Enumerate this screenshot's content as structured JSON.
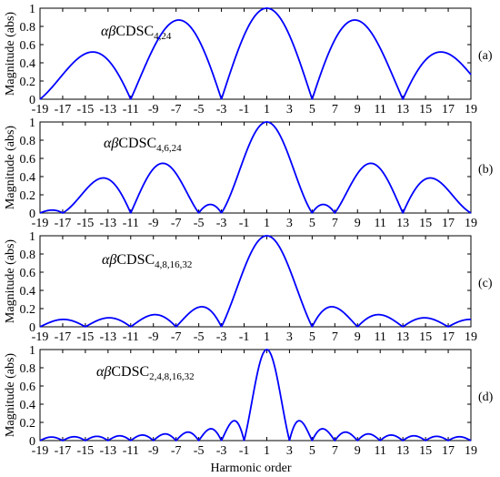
{
  "chart_data": [
    {
      "type": "line",
      "panel": "(a)",
      "annotation": {
        "prefix": "αβ",
        "name": "CDSC",
        "sub": "4,24"
      },
      "ylabel": "Magnitude (abs)",
      "xlabel": "",
      "xlim": [
        -19,
        19
      ],
      "ylim": [
        0,
        1
      ],
      "xticks": [
        -19,
        -17,
        -15,
        -13,
        -11,
        -9,
        -7,
        -5,
        -3,
        -1,
        1,
        3,
        5,
        7,
        9,
        11,
        13,
        15,
        17,
        19
      ],
      "yticks": [
        0,
        0.2,
        0.4,
        0.6,
        0.8,
        1
      ],
      "series": [
        {
          "color": "#0000ff",
          "factors": [
            4,
            24
          ]
        }
      ]
    },
    {
      "type": "line",
      "panel": "(b)",
      "annotation": {
        "prefix": "αβ",
        "name": "CDSC",
        "sub": "4,6,24"
      },
      "ylabel": "Magnitude (abs)",
      "xlabel": "",
      "xlim": [
        -19,
        19
      ],
      "ylim": [
        0,
        1
      ],
      "xticks": [
        -19,
        -17,
        -15,
        -13,
        -11,
        -9,
        -7,
        -5,
        -3,
        -1,
        1,
        3,
        5,
        7,
        9,
        11,
        13,
        15,
        17,
        19
      ],
      "yticks": [
        0,
        0.2,
        0.4,
        0.6,
        0.8,
        1
      ],
      "series": [
        {
          "color": "#0000ff",
          "factors": [
            4,
            6,
            24
          ]
        }
      ]
    },
    {
      "type": "line",
      "panel": "(c)",
      "annotation": {
        "prefix": "αβ",
        "name": "CDSC",
        "sub": "4,8,16,32"
      },
      "ylabel": "Magnitude (abs)",
      "xlabel": "",
      "xlim": [
        -19,
        19
      ],
      "ylim": [
        0,
        1
      ],
      "xticks": [
        -19,
        -17,
        -15,
        -13,
        -11,
        -9,
        -7,
        -5,
        -3,
        -1,
        1,
        3,
        5,
        7,
        9,
        11,
        13,
        15,
        17,
        19
      ],
      "yticks": [
        0,
        0.2,
        0.4,
        0.6,
        0.8,
        1
      ],
      "series": [
        {
          "color": "#0000ff",
          "factors": [
            4,
            8,
            16,
            32
          ]
        }
      ]
    },
    {
      "type": "line",
      "panel": "(d)",
      "annotation": {
        "prefix": "αβ",
        "name": "CDSC",
        "sub": "2,4,8,16,32"
      },
      "ylabel": "Magnitude (abs)",
      "xlabel": "Harmonic order",
      "xlim": [
        -19,
        19
      ],
      "ylim": [
        0,
        1
      ],
      "xticks": [
        -19,
        -17,
        -15,
        -13,
        -11,
        -9,
        -7,
        -5,
        -3,
        -1,
        1,
        3,
        5,
        7,
        9,
        11,
        13,
        15,
        17,
        19
      ],
      "yticks": [
        0,
        0.2,
        0.4,
        0.6,
        0.8,
        1
      ],
      "series": [
        {
          "color": "#0000ff",
          "factors": [
            2,
            4,
            8,
            16,
            32
          ]
        }
      ]
    }
  ]
}
